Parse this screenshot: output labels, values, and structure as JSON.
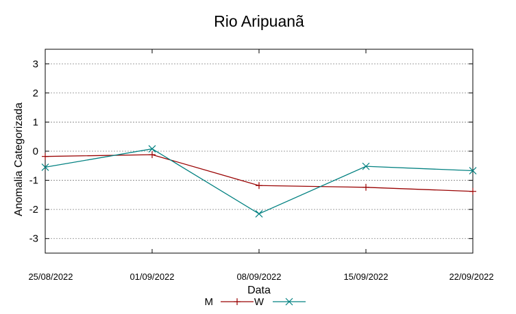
{
  "chart_data": {
    "type": "line",
    "title": "Rio Aripuanã",
    "xlabel": "Data",
    "ylabel": "Anomalia Categorizada",
    "categories": [
      "25/08/2022",
      "01/09/2022",
      "08/09/2022",
      "15/09/2022",
      "22/09/2022"
    ],
    "ylim": [
      -3.5,
      3.5
    ],
    "yticks": [
      3,
      2,
      1,
      0,
      -1,
      -2,
      -3
    ],
    "grid": true,
    "legend_position": "bottom",
    "series": [
      {
        "name": "M",
        "values": [
          -0.18,
          -0.12,
          -1.18,
          -1.24,
          -1.38
        ],
        "color": "#990000",
        "marker": "plus"
      },
      {
        "name": "W",
        "values": [
          -0.55,
          0.08,
          -2.15,
          -0.52,
          -0.67
        ],
        "color": "#008080",
        "marker": "cross"
      }
    ]
  }
}
